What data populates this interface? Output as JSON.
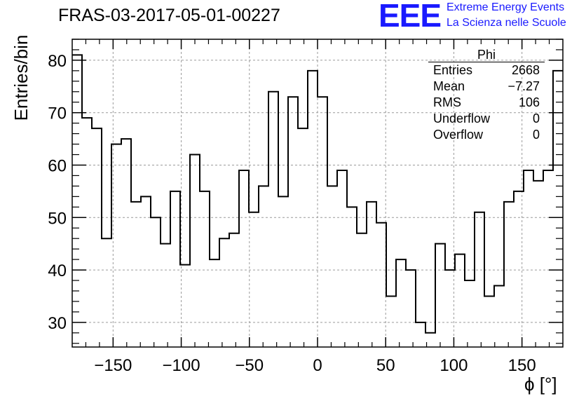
{
  "title": "FRAS-03-2017-05-01-00227",
  "logo": {
    "mark": "EEE",
    "line1": "Extreme Energy Events",
    "line2": "La Scienza nelle Scuole",
    "color": "#1a1aff"
  },
  "stats": {
    "name": "Phi",
    "rows": [
      {
        "label": "Entries",
        "value": "2668"
      },
      {
        "label": "Mean",
        "value": "−7.27"
      },
      {
        "label": "RMS",
        "value": "106"
      },
      {
        "label": "Underflow",
        "value": "0"
      },
      {
        "label": "Overflow",
        "value": "0"
      }
    ]
  },
  "chart_data": {
    "type": "histogram",
    "xlabel": "ϕ [°]",
    "ylabel": "Entries/bin",
    "xlim": [
      -180,
      180
    ],
    "ylim": [
      25.3,
      84
    ],
    "bin_width": 7.2,
    "x_ticks": [
      "−150",
      "−100",
      "−50",
      "0",
      "50",
      "100",
      "150"
    ],
    "y_ticks": [
      "30",
      "40",
      "50",
      "60",
      "70",
      "80"
    ],
    "grid": true,
    "values": [
      81,
      69,
      67,
      46,
      64,
      65,
      53,
      54,
      50,
      45,
      55,
      41,
      62,
      55,
      42,
      46,
      47,
      59,
      51,
      56,
      74,
      54,
      73,
      67,
      78,
      73,
      56,
      59,
      52,
      47,
      53,
      49,
      35,
      42,
      40,
      30,
      28,
      45,
      40,
      43,
      38,
      51,
      35,
      37,
      53,
      55,
      59,
      57,
      59,
      78
    ]
  }
}
